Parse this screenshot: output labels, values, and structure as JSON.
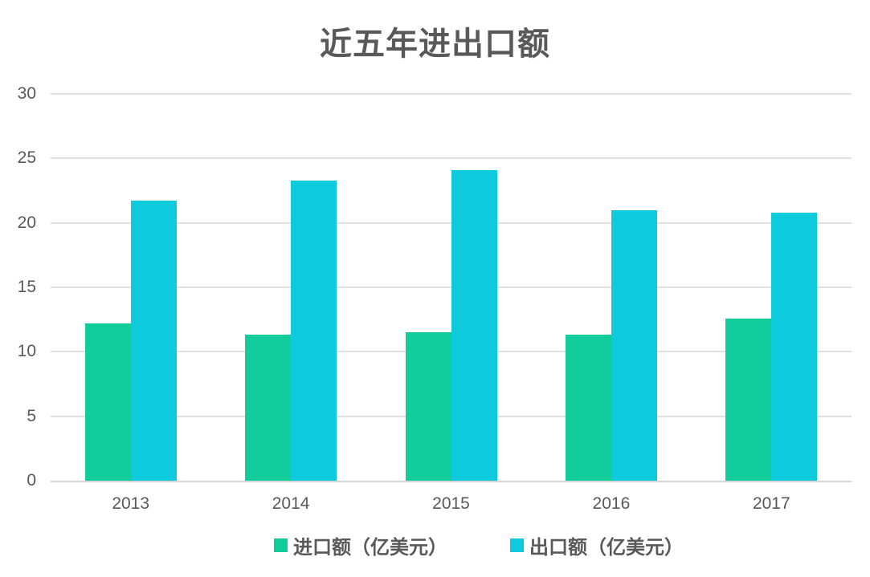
{
  "title": "近五年进出口额",
  "colors": {
    "import_bar": "#12cd9b",
    "export_bar": "#0dcbdc",
    "gridline": "#e1e1e1",
    "axis_line": "#d4d4d4",
    "text": "#595959",
    "background": "#ffffff"
  },
  "chart_data": {
    "type": "bar",
    "title": "近五年进出口额",
    "categories": [
      "2013",
      "2014",
      "2015",
      "2016",
      "2017"
    ],
    "series": [
      {
        "name": "进口额（亿美元）",
        "color": "#12cd9b",
        "values": [
          12.2,
          11.3,
          11.5,
          11.3,
          12.6
        ]
      },
      {
        "name": "出口额（亿美元）",
        "color": "#0dcbdc",
        "values": [
          21.7,
          23.3,
          24.1,
          21.0,
          20.8
        ]
      }
    ],
    "xlabel": "",
    "ylabel": "",
    "ylim": [
      0,
      30
    ],
    "yticks": [
      0,
      5,
      10,
      15,
      20,
      25,
      30
    ],
    "grid": true,
    "legend_position": "bottom"
  },
  "legend": {
    "items": [
      {
        "label": "进口额（亿美元）",
        "color": "#12cd9b"
      },
      {
        "label": "出口额（亿美元）",
        "color": "#0dcbdc"
      }
    ]
  }
}
